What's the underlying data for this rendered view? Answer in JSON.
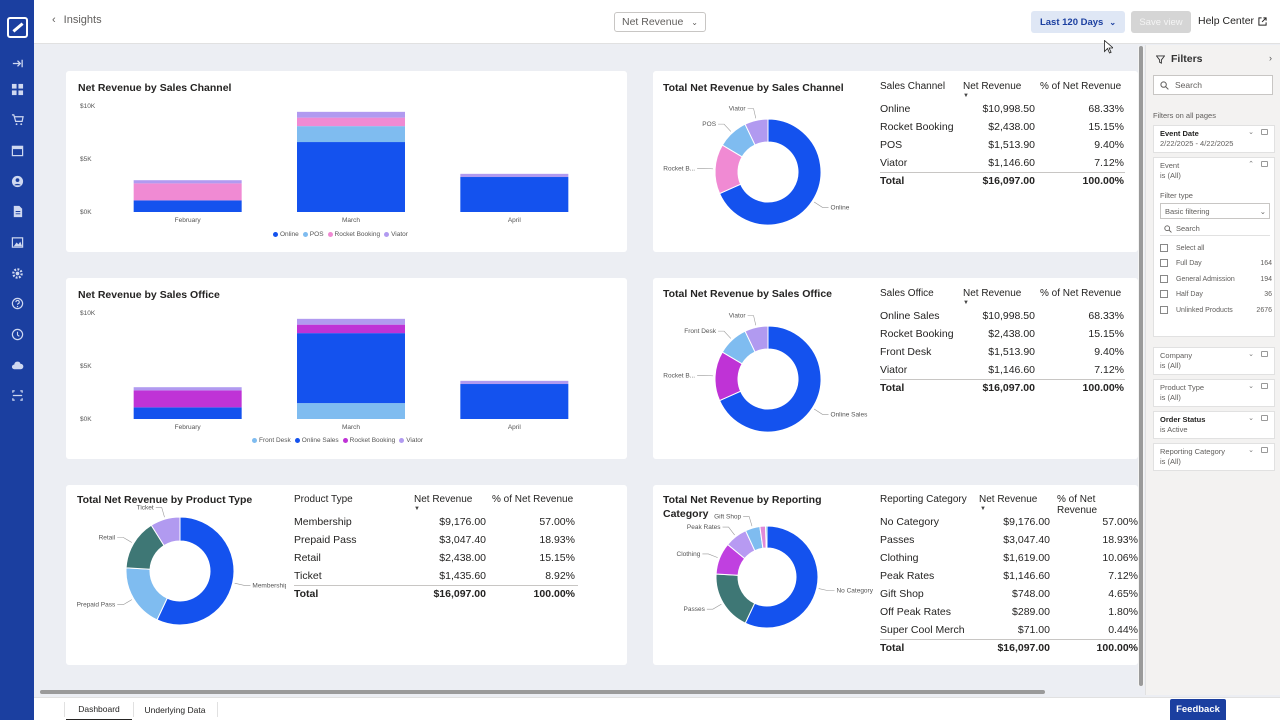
{
  "header": {
    "back_label": "Insights",
    "report_select": "Net Revenue",
    "date_range_button": "Last 120 Days",
    "save_view_button": "Save view",
    "help_center_link": "Help Center"
  },
  "nav_icons": [
    "expand-icon",
    "dashboard-icon",
    "cart-icon",
    "calendar-icon",
    "user-icon",
    "document-icon",
    "image-icon",
    "settings-icon",
    "help-icon",
    "clock-icon",
    "cloud-icon",
    "scan-icon"
  ],
  "colors": {
    "online": "#1452ee",
    "pos": "#7fbcf0",
    "rocket_booking": "#f08ad3",
    "viator": "#b19af0",
    "front_desk": "#7fbcf0",
    "office_rocket_booking": "#bf33d6",
    "category_passes": "#3e7775",
    "category_clothing": "#c040e0",
    "category_peak_rates": "#b79af2",
    "category_gift_shop": "#7fbcf0",
    "category_off_peak": "#e08ad8",
    "category_super_cool": "#2ab1b9",
    "accent": "#1b3fa0"
  },
  "cards": {
    "channel_bar": {
      "title": "Net Revenue by Sales Channel",
      "legend": [
        "Online",
        "POS",
        "Rocket Booking",
        "Viator"
      ]
    },
    "channel_table": {
      "title": "Total Net Revenue by Sales Channel",
      "headers": [
        "Sales Channel",
        "Net Revenue",
        "% of Net Revenue"
      ],
      "rows": [
        [
          "Online",
          "$10,998.50",
          "68.33%"
        ],
        [
          "Rocket Booking",
          "$2,438.00",
          "15.15%"
        ],
        [
          "POS",
          "$1,513.90",
          "9.40%"
        ],
        [
          "Viator",
          "$1,146.60",
          "7.12%"
        ]
      ],
      "total": [
        "Total",
        "$16,097.00",
        "100.00%"
      ],
      "donut_labels": [
        "Online",
        "Rocket B...",
        "POS",
        "Viator"
      ]
    },
    "office_bar": {
      "title": "Net Revenue by Sales Office",
      "legend": [
        "Front Desk",
        "Online Sales",
        "Rocket Booking",
        "Viator"
      ]
    },
    "office_table": {
      "title": "Total Net Revenue by Sales Office",
      "headers": [
        "Sales Office",
        "Net Revenue",
        "% of Net Revenue"
      ],
      "rows": [
        [
          "Online Sales",
          "$10,998.50",
          "68.33%"
        ],
        [
          "Rocket Booking",
          "$2,438.00",
          "15.15%"
        ],
        [
          "Front Desk",
          "$1,513.90",
          "9.40%"
        ],
        [
          "Viator",
          "$1,146.60",
          "7.12%"
        ]
      ],
      "total": [
        "Total",
        "$16,097.00",
        "100.00%"
      ],
      "donut_labels": [
        "Online Sales",
        "Rocket B...",
        "Front Desk",
        "Viator"
      ]
    },
    "product_table": {
      "title": "Total Net Revenue by Product Type",
      "headers": [
        "Product Type",
        "Net Revenue",
        "% of Net Revenue"
      ],
      "rows": [
        [
          "Membership",
          "$9,176.00",
          "57.00%"
        ],
        [
          "Prepaid Pass",
          "$3,047.40",
          "18.93%"
        ],
        [
          "Retail",
          "$2,438.00",
          "15.15%"
        ],
        [
          "Ticket",
          "$1,435.60",
          "8.92%"
        ]
      ],
      "total": [
        "Total",
        "$16,097.00",
        "100.00%"
      ],
      "donut_labels": [
        "Membership",
        "Prepaid Pass",
        "Retail",
        "Ticket"
      ]
    },
    "category_table": {
      "title": "Total Net Revenue by Reporting Category",
      "headers": [
        "Reporting Category",
        "Net Revenue",
        "% of Net Revenue"
      ],
      "rows": [
        [
          "No Category",
          "$9,176.00",
          "57.00%"
        ],
        [
          "Passes",
          "$3,047.40",
          "18.93%"
        ],
        [
          "Clothing",
          "$1,619.00",
          "10.06%"
        ],
        [
          "Peak Rates",
          "$1,146.60",
          "7.12%"
        ],
        [
          "Gift Shop",
          "$748.00",
          "4.65%"
        ],
        [
          "Off Peak Rates",
          "$289.00",
          "1.80%"
        ],
        [
          "Super Cool Merch",
          "$71.00",
          "0.44%"
        ]
      ],
      "total": [
        "Total",
        "$16,097.00",
        "100.00%"
      ],
      "donut_labels": [
        "No Category",
        "Passes",
        "Clothing",
        "Peak Rates",
        "Gift Shop"
      ]
    }
  },
  "chart_data": [
    {
      "type": "bar",
      "title": "Net Revenue by Sales Channel",
      "stacked": true,
      "categories": [
        "February",
        "March",
        "April"
      ],
      "yticks": [
        "$10K",
        "$5K",
        "$0K"
      ],
      "ylim": [
        0,
        10000
      ],
      "series": [
        {
          "name": "Online",
          "values": [
            1100,
            6600,
            3300
          ]
        },
        {
          "name": "POS",
          "values": [
            0,
            1500,
            0
          ]
        },
        {
          "name": "Rocket Booking",
          "values": [
            1600,
            800,
            0
          ]
        },
        {
          "name": "Viator",
          "values": [
            300,
            550,
            300
          ]
        }
      ]
    },
    {
      "type": "bar",
      "title": "Net Revenue by Sales Office",
      "stacked": true,
      "categories": [
        "February",
        "March",
        "April"
      ],
      "yticks": [
        "$10K",
        "$5K",
        "$0K"
      ],
      "ylim": [
        0,
        10000
      ],
      "series": [
        {
          "name": "Front Desk",
          "values": [
            0,
            1500,
            0
          ]
        },
        {
          "name": "Online Sales",
          "values": [
            1100,
            6600,
            3300
          ]
        },
        {
          "name": "Rocket Booking",
          "values": [
            1600,
            800,
            0
          ]
        },
        {
          "name": "Viator",
          "values": [
            300,
            550,
            300
          ]
        }
      ]
    },
    {
      "type": "pie",
      "title": "Total Net Revenue by Sales Channel",
      "labels": [
        "Online",
        "Rocket Booking",
        "POS",
        "Viator"
      ],
      "values": [
        68.33,
        15.15,
        9.4,
        7.12
      ]
    },
    {
      "type": "pie",
      "title": "Total Net Revenue by Sales Office",
      "labels": [
        "Online Sales",
        "Rocket Booking",
        "Front Desk",
        "Viator"
      ],
      "values": [
        68.33,
        15.15,
        9.4,
        7.12
      ]
    },
    {
      "type": "pie",
      "title": "Total Net Revenue by Product Type",
      "labels": [
        "Membership",
        "Prepaid Pass",
        "Retail",
        "Ticket"
      ],
      "values": [
        57.0,
        18.93,
        15.15,
        8.92
      ]
    },
    {
      "type": "pie",
      "title": "Total Net Revenue by Reporting Category",
      "labels": [
        "No Category",
        "Passes",
        "Clothing",
        "Peak Rates",
        "Gift Shop",
        "Off Peak Rates",
        "Super Cool Merch"
      ],
      "values": [
        57.0,
        18.93,
        10.06,
        7.12,
        4.65,
        1.8,
        0.44
      ]
    }
  ],
  "filters": {
    "title": "Filters",
    "search_placeholder": "Search",
    "all_pages_label": "Filters on all pages",
    "event_date": {
      "title": "Event Date",
      "value": "2/22/2025 - 4/22/2025"
    },
    "event": {
      "title": "Event",
      "value": "is (All)",
      "filter_type_label": "Filter type",
      "filter_type_value": "Basic filtering",
      "search_placeholder": "Search",
      "options": [
        {
          "label": "Select all",
          "count": ""
        },
        {
          "label": "Full Day",
          "count": "164"
        },
        {
          "label": "General Admission",
          "count": "194"
        },
        {
          "label": "Half Day",
          "count": "36"
        },
        {
          "label": "Unlinked Products",
          "count": "2676"
        }
      ]
    },
    "company": {
      "title": "Company",
      "value": "is (All)"
    },
    "product_type": {
      "title": "Product Type",
      "value": "is (All)"
    },
    "order_status": {
      "title": "Order Status",
      "value": "is Active"
    },
    "reporting_category": {
      "title": "Reporting Category",
      "value": "is (All)"
    }
  },
  "tabs": [
    "Dashboard",
    "Underlying Data"
  ],
  "feedback_button": "Feedback"
}
